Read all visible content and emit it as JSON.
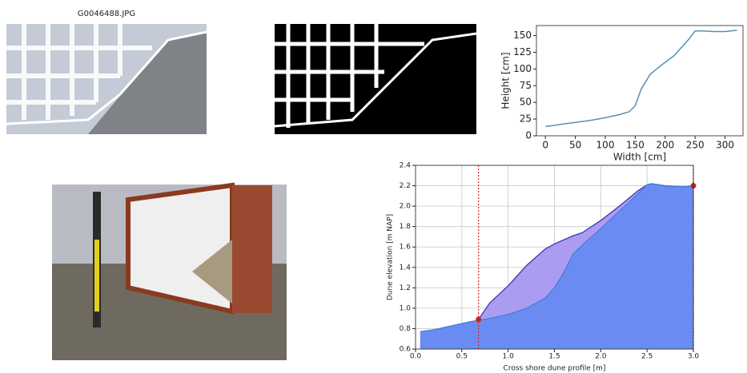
{
  "image_title": "G0046488.JPG",
  "chart_data": [
    {
      "type": "line",
      "xlabel": "Width [cm]",
      "ylabel": "Height [cm]",
      "x": [
        0,
        10,
        25,
        50,
        75,
        100,
        125,
        140,
        150,
        160,
        175,
        190,
        200,
        215,
        225,
        240,
        250,
        265,
        280,
        300,
        320
      ],
      "series": [
        {
          "color": "#5b8fb0",
          "values": [
            14,
            15,
            17,
            20,
            23,
            27,
            32,
            36,
            45,
            70,
            92,
            103,
            110,
            120,
            130,
            145,
            157,
            157,
            156,
            156,
            158
          ]
        }
      ],
      "xlim": [
        -15,
        330
      ],
      "ylim": [
        0,
        165
      ],
      "xticks": [
        0,
        50,
        100,
        150,
        200,
        250,
        300
      ],
      "yticks": [
        0,
        25,
        50,
        75,
        100,
        125,
        150
      ],
      "grid": false
    },
    {
      "type": "area",
      "xlabel": "Cross shore dune profile [m]",
      "ylabel": "Dune elevation [m NAP]",
      "x": [
        0.05,
        0.2,
        0.4,
        0.6,
        0.68,
        0.8,
        1.0,
        1.2,
        1.4,
        1.5,
        1.6,
        1.7,
        1.8,
        2.0,
        2.2,
        2.4,
        2.5,
        2.55,
        2.7,
        2.9,
        3.0
      ],
      "series": [
        {
          "color": "#2e2ea8",
          "fill": "#ab9cf2",
          "values": [
            null,
            null,
            null,
            null,
            0.89,
            1.05,
            1.22,
            1.42,
            1.58,
            1.63,
            1.67,
            1.71,
            1.74,
            1.86,
            2.0,
            2.15,
            2.21,
            2.22,
            2.2,
            2.19,
            2.2
          ]
        },
        {
          "color": "#3f7fd6",
          "fill": "#6a8cf2",
          "values": [
            0.77,
            0.79,
            0.83,
            0.87,
            0.88,
            0.9,
            0.94,
            1.0,
            1.1,
            1.2,
            1.35,
            1.53,
            1.62,
            1.78,
            1.95,
            2.12,
            2.21,
            2.22,
            2.2,
            2.19,
            2.2
          ]
        }
      ],
      "vlines": [
        0.68,
        3.0
      ],
      "vline_color": "#dd2222",
      "markers": [
        {
          "x": 0.68,
          "y": 0.89
        },
        {
          "x": 3.0,
          "y": 2.2
        }
      ],
      "marker_color": "#cc2222",
      "xlim": [
        0,
        3.0
      ],
      "ylim": [
        0.6,
        2.4
      ],
      "xticks": [
        {
          "value": 0,
          "label": "0.0"
        },
        0.5,
        {
          "value": 1,
          "label": "1.0"
        },
        1.5,
        {
          "value": 2,
          "label": "2.0"
        },
        2.5,
        {
          "value": 3,
          "label": "3.0"
        }
      ],
      "yticks": [
        0.6,
        0.8,
        {
          "value": 1,
          "label": "1.0"
        },
        1.2,
        1.4,
        1.6,
        1.8,
        {
          "value": 2,
          "label": "2.0"
        },
        2.2,
        2.4
      ],
      "grid": true
    }
  ]
}
